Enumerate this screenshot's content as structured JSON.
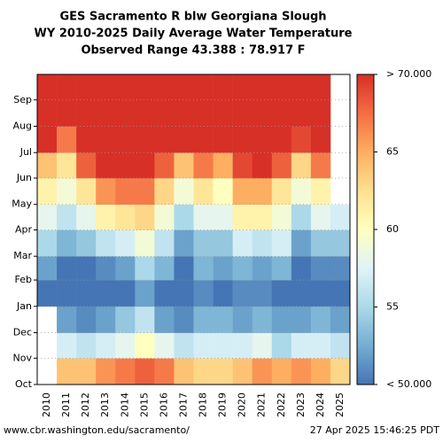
{
  "chart_data": {
    "type": "heatmap",
    "title": [
      "GES Sacramento R blw Georgiana Slough",
      "WY 2010-2025 Daily Average Water Temperature",
      "Observed Range 43.388 : 78.917 F"
    ],
    "categories": [
      "2010",
      "2011",
      "2012",
      "2013",
      "2014",
      "2015",
      "2016",
      "2017",
      "2018",
      "2019",
      "2020",
      "2021",
      "2022",
      "2023",
      "2024",
      "2025"
    ],
    "ylim": [
      0,
      365
    ],
    "yticks": [
      {
        "value": 0,
        "label": "Oct"
      },
      {
        "value": 31,
        "label": "Nov"
      },
      {
        "value": 61,
        "label": "Dec"
      },
      {
        "value": 92,
        "label": "Jan"
      },
      {
        "value": 123,
        "label": "Feb"
      },
      {
        "value": 151,
        "label": "Mar"
      },
      {
        "value": 182,
        "label": "Apr"
      },
      {
        "value": 212,
        "label": "May"
      },
      {
        "value": 243,
        "label": "Jun"
      },
      {
        "value": 273,
        "label": "Jul"
      },
      {
        "value": 304,
        "label": "Aug"
      },
      {
        "value": 335,
        "label": "Sep"
      }
    ],
    "values": [
      [
        null,
        null,
        null,
        49,
        52,
        55,
        58,
        61,
        64,
        70,
        72,
        70
      ],
      [
        64,
        57,
        52,
        49,
        50,
        53,
        56,
        59,
        62,
        67,
        72,
        71
      ],
      [
        64,
        56,
        51,
        49,
        50,
        54,
        58,
        62,
        68,
        71,
        72,
        70
      ],
      [
        66,
        57,
        52,
        48,
        51,
        56,
        61,
        66,
        70,
        72,
        73,
        71
      ],
      [
        67,
        58,
        54,
        50,
        52,
        57,
        62,
        67,
        71,
        73,
        73,
        71
      ],
      [
        68,
        60,
        56,
        52,
        55,
        59,
        63,
        67,
        71,
        73,
        73,
        71
      ],
      [
        67,
        58,
        52,
        49,
        53,
        56,
        59,
        63,
        68,
        71,
        72,
        70
      ],
      [
        64,
        56,
        51,
        48,
        49,
        52,
        55,
        59,
        64,
        70,
        72,
        71
      ],
      [
        63,
        57,
        53,
        51,
        53,
        54,
        58,
        62,
        67,
        71,
        72,
        70
      ],
      [
        63,
        57,
        53,
        50,
        52,
        54,
        58,
        60,
        65,
        70,
        72,
        70
      ],
      [
        64,
        57,
        52,
        51,
        53,
        57,
        61,
        65,
        69,
        71,
        72,
        71
      ],
      [
        66,
        58,
        53,
        51,
        52,
        56,
        61,
        65,
        70,
        72,
        72,
        70
      ],
      [
        65,
        55,
        52,
        50,
        53,
        57,
        59,
        62,
        68,
        71,
        72,
        70
      ],
      [
        66,
        57,
        52,
        49,
        50,
        52,
        55,
        59,
        63,
        69,
        72,
        70
      ],
      [
        65,
        57,
        53,
        50,
        51,
        54,
        58,
        61,
        67,
        71,
        72,
        70
      ],
      [
        63,
        56,
        52,
        50,
        51,
        54,
        57,
        null,
        null,
        null,
        null,
        null
      ]
    ],
    "clim": [
      50,
      70
    ],
    "cticks": [
      {
        "value": 50,
        "label": "< 50.000"
      },
      55,
      60,
      65,
      {
        "value": 70,
        "label": "> 70.000"
      }
    ],
    "colors": [
      "#4575b4",
      "#74add1",
      "#abd9e9",
      "#e0f3f8",
      "#ffffbf",
      "#fee090",
      "#fdae61",
      "#f46d43",
      "#d73027"
    ],
    "grid": true,
    "footer_left": "www.cbr.washington.edu/sacramento/",
    "footer_right": "27 Apr 2025 15:46:25 PDT"
  }
}
